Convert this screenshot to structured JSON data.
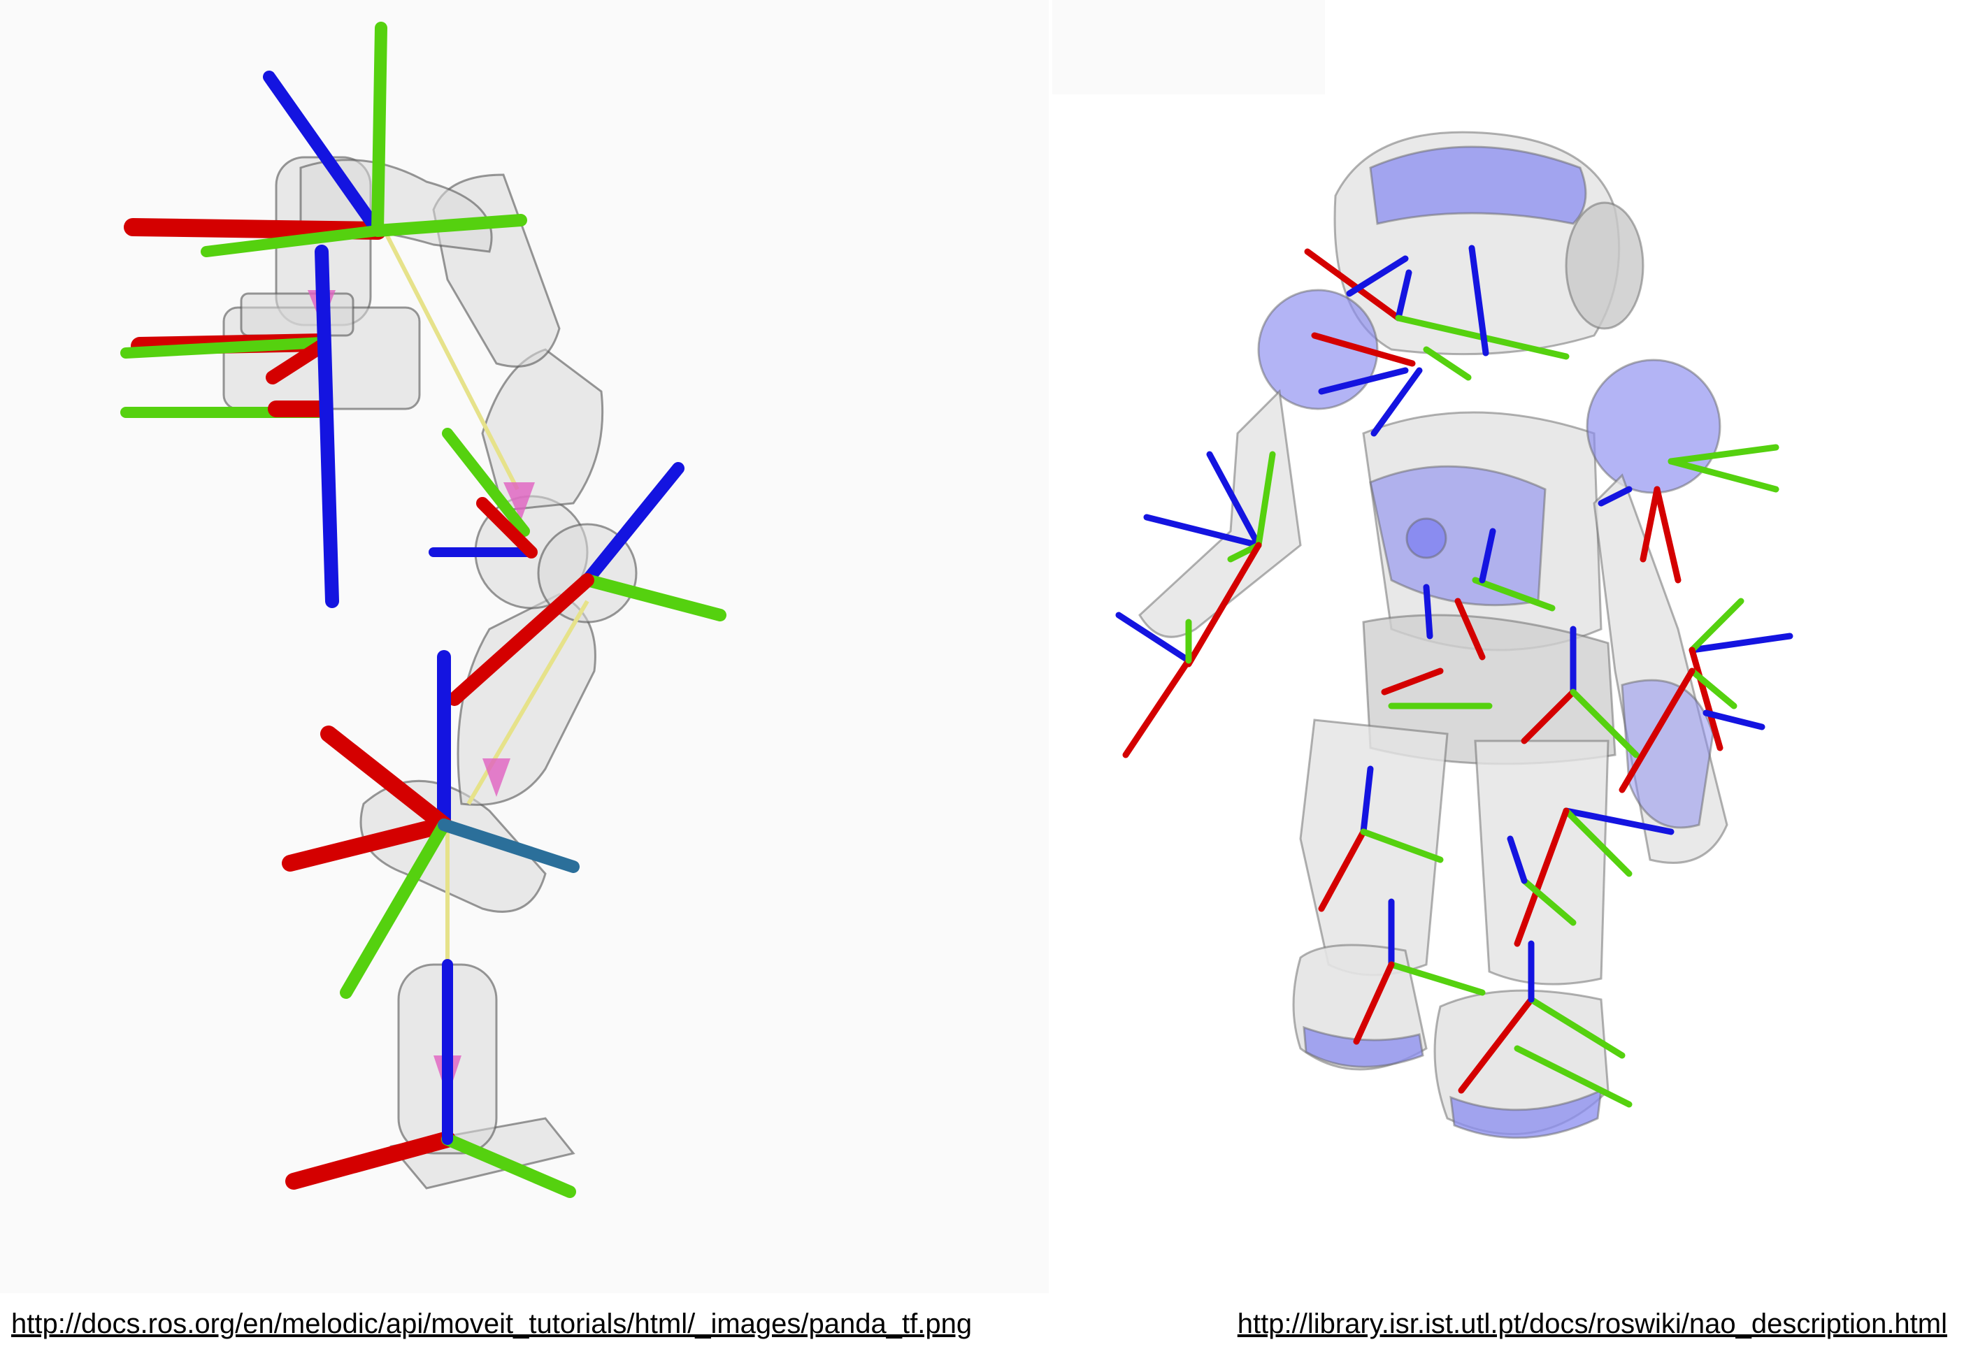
{
  "captions": {
    "left": "http://docs.ros.org/en/melodic/api/moveit_tutorials/html/_images/panda_tf.png",
    "right": "http://library.isr.ist.utl.pt/docs/roswiki/nao_description.html"
  },
  "colors": {
    "x_axis": "#d40000",
    "y_axis": "#55d10f",
    "z_axis": "#1414e0",
    "nao_accent": "#8a8cf0",
    "link_line": "#e6e28a",
    "marker": "#e060c0"
  }
}
